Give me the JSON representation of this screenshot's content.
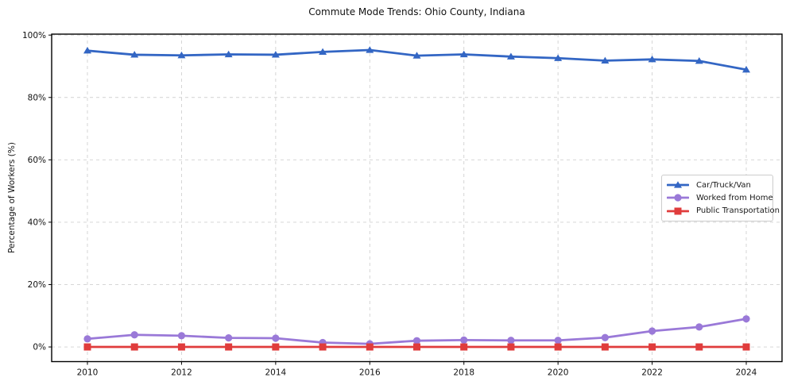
{
  "chart_data": {
    "type": "line",
    "title": "Commute Mode Trends: Ohio County, Indiana",
    "xlabel": "",
    "ylabel": "Percentage of Workers (%)",
    "x": [
      2010,
      2011,
      2012,
      2013,
      2014,
      2015,
      2016,
      2017,
      2018,
      2019,
      2020,
      2021,
      2022,
      2023,
      2024
    ],
    "series": [
      {
        "name": "Car/Truck/Van",
        "color": "#3366c4",
        "marker": "triangle",
        "values": [
          95.0,
          93.7,
          93.5,
          93.8,
          93.7,
          94.6,
          95.2,
          93.4,
          93.8,
          93.1,
          92.6,
          91.8,
          92.2,
          91.7,
          88.9
        ]
      },
      {
        "name": "Worked from Home",
        "color": "#9a79d8",
        "marker": "circle",
        "values": [
          2.6,
          3.9,
          3.6,
          2.9,
          2.8,
          1.4,
          1.0,
          2.0,
          2.2,
          2.1,
          2.1,
          3.0,
          5.1,
          6.4,
          9.0
        ]
      },
      {
        "name": "Public Transportation",
        "color": "#e03c3c",
        "marker": "square",
        "values": [
          0.0,
          0.0,
          0.0,
          0.0,
          0.0,
          0.0,
          0.0,
          0.0,
          0.0,
          0.0,
          0.0,
          0.0,
          0.0,
          0.0,
          0.0
        ]
      }
    ],
    "xlim": [
      2009.24,
      2024.76
    ],
    "ylim": [
      -4.7,
      100.3
    ],
    "xticks": {
      "values": [
        2010,
        2012,
        2014,
        2016,
        2018,
        2020,
        2022,
        2024
      ],
      "labels": [
        "2010",
        "2012",
        "2014",
        "2016",
        "2018",
        "2020",
        "2022",
        "2024"
      ]
    },
    "yticks": {
      "values": [
        0,
        20,
        40,
        60,
        80,
        100
      ],
      "labels": [
        "0%",
        "20%",
        "40%",
        "60%",
        "80%",
        "100%"
      ]
    },
    "grid": "dashed",
    "grid_color": "#cccccc",
    "spine_color": "#000000",
    "legend_position": "center-right"
  }
}
